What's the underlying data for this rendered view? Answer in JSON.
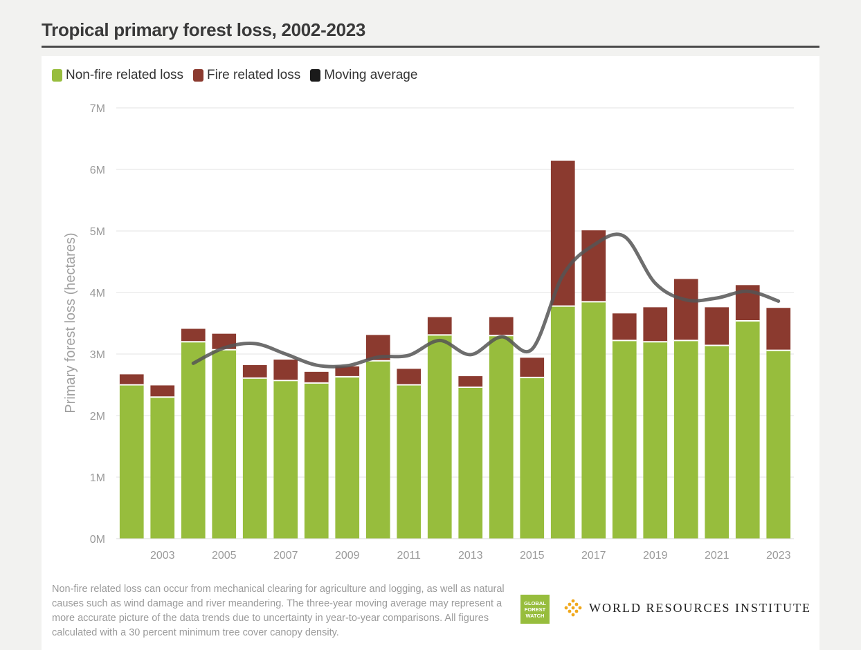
{
  "header": {
    "title": "Tropical primary forest loss, 2002-2023"
  },
  "legend": [
    {
      "label": "Non-fire related loss",
      "color": "#97bd3d"
    },
    {
      "label": "Fire related loss",
      "color": "#8b3a2f"
    },
    {
      "label": "Moving average",
      "color": "#1a1a1a"
    }
  ],
  "footnote": "Non-fire related loss can occur from mechanical clearing for agriculture and logging, as well as natural causes such as wind damage and river meandering. The three-year moving average may represent a more accurate picture of the data trends due to uncertainty in year-to-year comparisons. All figures calculated with a 30 percent minimum tree cover canopy density.",
  "logos": {
    "gfw": [
      "GLOBAL",
      "FOREST",
      "WATCH"
    ],
    "wri": "WORLD RESOURCES INSTITUTE"
  },
  "chart_data": {
    "type": "bar",
    "stacked": true,
    "ylabel": "Primary forest loss (hectares)",
    "ylim": [
      0,
      7000000
    ],
    "yticks": [
      0,
      1000000,
      2000000,
      3000000,
      4000000,
      5000000,
      6000000,
      7000000
    ],
    "ytick_labels": [
      "0M",
      "1M",
      "2M",
      "3M",
      "4M",
      "5M",
      "6M",
      "7M"
    ],
    "grid": true,
    "legend_position": "top-left",
    "categories": [
      "2002",
      "2003",
      "2004",
      "2005",
      "2006",
      "2007",
      "2008",
      "2009",
      "2010",
      "2011",
      "2012",
      "2013",
      "2014",
      "2015",
      "2016",
      "2017",
      "2018",
      "2019",
      "2020",
      "2021",
      "2022",
      "2023"
    ],
    "xtick_labels": [
      "2003",
      "2005",
      "2007",
      "2009",
      "2011",
      "2013",
      "2015",
      "2017",
      "2019",
      "2021",
      "2023"
    ],
    "series": [
      {
        "name": "Non-fire related loss",
        "color": "#97bd3d",
        "values": [
          2500000,
          2300000,
          3200000,
          3070000,
          2610000,
          2570000,
          2530000,
          2630000,
          2890000,
          2500000,
          3310000,
          2460000,
          3300000,
          2620000,
          3780000,
          3850000,
          3220000,
          3200000,
          3220000,
          3140000,
          3540000,
          3060000
        ]
      },
      {
        "name": "Fire related loss",
        "color": "#8b3a2f",
        "values": [
          170000,
          190000,
          210000,
          260000,
          210000,
          340000,
          180000,
          170000,
          420000,
          260000,
          290000,
          180000,
          300000,
          320000,
          2360000,
          1160000,
          440000,
          560000,
          1000000,
          620000,
          580000,
          690000
        ]
      },
      {
        "name": "Moving average",
        "type": "line",
        "color": "#555555",
        "x": [
          "2004",
          "2005",
          "2006",
          "2007",
          "2008",
          "2009",
          "2010",
          "2011",
          "2012",
          "2013",
          "2014",
          "2015",
          "2016",
          "2017",
          "2018",
          "2019",
          "2020",
          "2021",
          "2022",
          "2023"
        ],
        "values": [
          2850000,
          3100000,
          3170000,
          3000000,
          2820000,
          2810000,
          2950000,
          2980000,
          3220000,
          2990000,
          3280000,
          3080000,
          4280000,
          4770000,
          4910000,
          4150000,
          3880000,
          3910000,
          4020000,
          3860000
        ]
      }
    ]
  }
}
